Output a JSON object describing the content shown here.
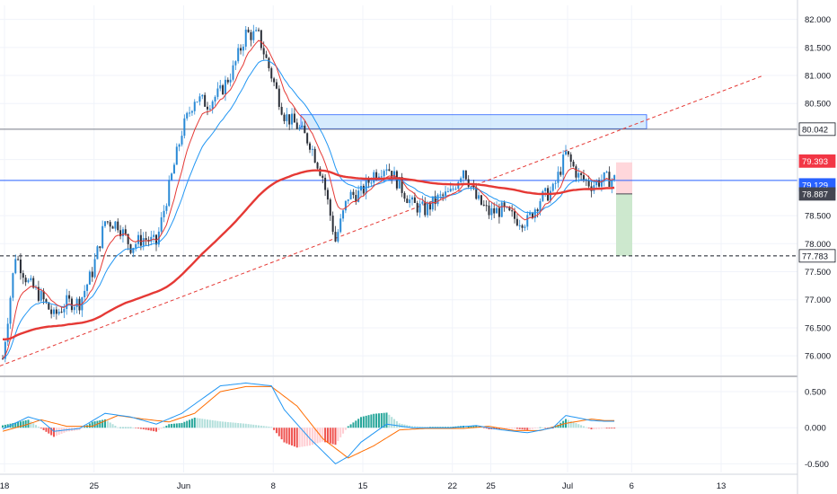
{
  "chart_data": [
    {
      "type": "candlestick",
      "panel": "price",
      "y_ticks": [
        "82.000",
        "81.500",
        "81.000",
        "80.500",
        "79.500",
        "78.500",
        "78.000",
        "77.500",
        "77.000",
        "76.500",
        "76.000"
      ],
      "y_tick_values": [
        82.0,
        81.5,
        81.0,
        80.5,
        79.5,
        78.5,
        78.0,
        77.5,
        77.0,
        76.5,
        76.0
      ],
      "ylim": [
        75.65,
        82.25
      ],
      "x_ticks": [
        "18",
        "25",
        "Jun",
        "8",
        "15",
        "22",
        "25",
        "Jul",
        "6",
        "13"
      ],
      "x_tick_days": [
        0,
        7,
        14,
        21,
        28,
        35,
        38,
        44,
        49,
        56
      ],
      "xlim_days": [
        0,
        63
      ],
      "grid": true,
      "colors": {
        "up": "#2a8ad6",
        "down": "#2b2f38",
        "ema_fast": "#e53935",
        "ema_slow": "#2196f3",
        "ma_long": "#e53935",
        "trendline": "#e53935",
        "supply_zone": "#bbdefb",
        "target_zone": "#c8e6c9",
        "stop_zone": "#ffcdd2"
      },
      "ohlc_anchors": [
        [
          0,
          75.95
        ],
        [
          1,
          77.8
        ],
        [
          2,
          77.3
        ],
        [
          3,
          77.05
        ],
        [
          4,
          76.7
        ],
        [
          5,
          76.95
        ],
        [
          6,
          76.95
        ],
        [
          7,
          77.5
        ],
        [
          8,
          78.4
        ],
        [
          9,
          78.35
        ],
        [
          10,
          77.95
        ],
        [
          11,
          78.1
        ],
        [
          12,
          78.0
        ],
        [
          13,
          79.0
        ],
        [
          14,
          80.0
        ],
        [
          15,
          80.6
        ],
        [
          16,
          80.5
        ],
        [
          17,
          80.7
        ],
        [
          18,
          81.1
        ],
        [
          19,
          81.75
        ],
        [
          20,
          81.7
        ],
        [
          21,
          81.0
        ],
        [
          22,
          80.3
        ],
        [
          23,
          80.1
        ],
        [
          24,
          79.8
        ],
        [
          25,
          79.2
        ],
        [
          26,
          78.05
        ],
        [
          27,
          78.85
        ],
        [
          28,
          78.9
        ],
        [
          29,
          79.25
        ],
        [
          30,
          79.4
        ],
        [
          31,
          79.05
        ],
        [
          32,
          78.7
        ],
        [
          33,
          78.6
        ],
        [
          34,
          78.8
        ],
        [
          35,
          78.9
        ],
        [
          36,
          79.35
        ],
        [
          37,
          78.8
        ],
        [
          38,
          78.55
        ],
        [
          39,
          78.6
        ],
        [
          40,
          78.45
        ],
        [
          41,
          78.4
        ],
        [
          42,
          78.8
        ],
        [
          43,
          78.95
        ],
        [
          44,
          79.6
        ],
        [
          45,
          79.2
        ],
        [
          46,
          79.05
        ],
        [
          47,
          79.15
        ]
      ],
      "levels": [
        {
          "label": "80.042",
          "value": 80.042,
          "color": "#787b86",
          "style": "solid"
        },
        {
          "label": "79.393",
          "value": 79.393,
          "color": "#f23645",
          "style": "solid"
        },
        {
          "label": "79.129",
          "value": 79.129,
          "color": "#2962ff",
          "style": "solid"
        },
        {
          "label": "78.887",
          "value": 78.887,
          "color": "#434651",
          "style": "solid"
        },
        {
          "label": "77.783",
          "value": 77.783,
          "color": "#131722",
          "style": "dashed"
        }
      ]
    },
    {
      "type": "macd",
      "panel": "oscillator",
      "y_ticks": [
        "0.500",
        "0.000",
        "-0.500"
      ],
      "y_tick_values": [
        0.5,
        0.0,
        -0.5
      ],
      "ylim": [
        -0.62,
        0.7
      ],
      "macd_anchors": [
        [
          0,
          -0.02
        ],
        [
          2,
          0.15
        ],
        [
          3,
          0.1
        ],
        [
          4,
          -0.05
        ],
        [
          6,
          -0.01
        ],
        [
          8,
          0.2
        ],
        [
          10,
          0.15
        ],
        [
          12,
          0.05
        ],
        [
          14,
          0.2
        ],
        [
          17,
          0.58
        ],
        [
          19,
          0.62
        ],
        [
          21,
          0.58
        ],
        [
          22,
          0.25
        ],
        [
          24,
          -0.15
        ],
        [
          26,
          -0.5
        ],
        [
          27,
          -0.4
        ],
        [
          28,
          -0.2
        ],
        [
          30,
          0.05
        ],
        [
          32,
          0.0
        ],
        [
          35,
          0.0
        ],
        [
          37,
          0.03
        ],
        [
          39,
          -0.03
        ],
        [
          41,
          -0.07
        ],
        [
          43,
          0.0
        ],
        [
          44,
          0.17
        ],
        [
          46,
          0.1
        ],
        [
          47,
          0.09
        ]
      ],
      "signal_anchors": [
        [
          0,
          -0.05
        ],
        [
          2,
          0.05
        ],
        [
          3,
          0.11
        ],
        [
          5,
          0.02
        ],
        [
          7,
          0.02
        ],
        [
          9,
          0.17
        ],
        [
          11,
          0.12
        ],
        [
          13,
          0.08
        ],
        [
          15,
          0.2
        ],
        [
          17,
          0.5
        ],
        [
          19,
          0.57
        ],
        [
          21,
          0.57
        ],
        [
          23,
          0.3
        ],
        [
          25,
          -0.15
        ],
        [
          27,
          -0.42
        ],
        [
          29,
          -0.25
        ],
        [
          31,
          -0.03
        ],
        [
          33,
          -0.01
        ],
        [
          36,
          -0.01
        ],
        [
          38,
          0.02
        ],
        [
          40,
          -0.04
        ],
        [
          42,
          -0.04
        ],
        [
          44,
          0.06
        ],
        [
          46,
          0.12
        ],
        [
          47,
          0.1
        ]
      ]
    }
  ]
}
